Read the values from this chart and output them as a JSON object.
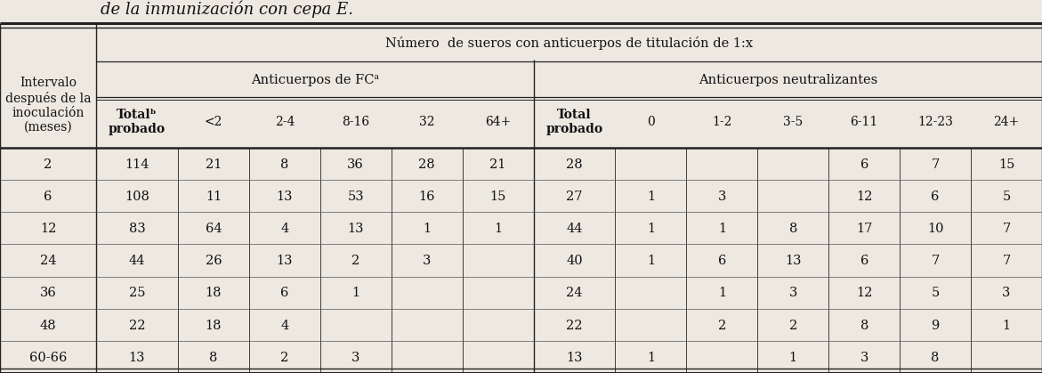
{
  "title_italic": "de la inmunización con cepa E.",
  "main_header": "Número  de sueros con anticuerpos de titulación de 1:x",
  "left_header": "Intervalo\ndespués de la\ninoculación\n(meses)",
  "group1_header": "Anticuerpos de FCᵃ",
  "group2_header": "Anticuerpos neutralizantes",
  "col_headers": [
    "Totalᵇ\nprobado",
    "<2",
    "2-4",
    "8-16",
    "32",
    "64+",
    "Total\nprobado",
    "0",
    "1-2",
    "3-5",
    "6-11",
    "12-23",
    "24+"
  ],
  "row_labels": [
    "2",
    "6",
    "12",
    "24",
    "36",
    "48",
    "60-66"
  ],
  "data": [
    [
      "114",
      "21",
      "8",
      "36",
      "28",
      "21",
      "28",
      "",
      "",
      "",
      "6",
      "7",
      "15"
    ],
    [
      "108",
      "11",
      "13",
      "53",
      "16",
      "15",
      "27",
      "1",
      "3",
      "",
      "12",
      "6",
      "5"
    ],
    [
      "83",
      "64",
      "4",
      "13",
      "1",
      "1",
      "44",
      "1",
      "1",
      "8",
      "17",
      "10",
      "7"
    ],
    [
      "44",
      "26",
      "13",
      "2",
      "3",
      "",
      "40",
      "1",
      "6",
      "13",
      "6",
      "7",
      "7"
    ],
    [
      "25",
      "18",
      "6",
      "1",
      "",
      "",
      "24",
      "",
      "1",
      "3",
      "12",
      "5",
      "3"
    ],
    [
      "22",
      "18",
      "4",
      "",
      "",
      "",
      "22",
      "",
      "2",
      "2",
      "8",
      "9",
      "1"
    ],
    [
      "13",
      "8",
      "2",
      "3",
      "",
      "",
      "13",
      "1",
      "",
      "1",
      "3",
      "8",
      ""
    ]
  ],
  "bg_color": "#ede8e0",
  "text_color": "#111111",
  "line_color": "#222222",
  "font_size": 10.5,
  "header_font_size": 10.5,
  "title_font_size": 13
}
